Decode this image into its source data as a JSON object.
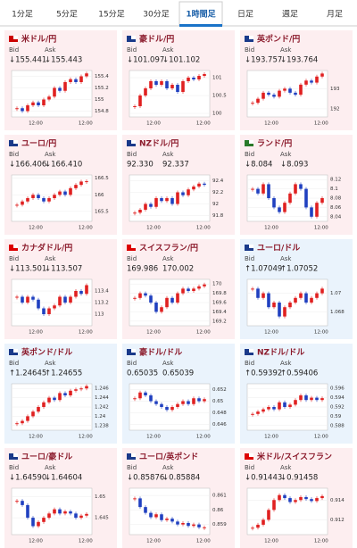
{
  "tabs": {
    "items": [
      "1分足",
      "5分足",
      "15分足",
      "30分足",
      "1時間足",
      "日足",
      "週足",
      "月足"
    ],
    "selected": 4
  },
  "cards": [
    {
      "name": "米ドル/円",
      "bid_label": "Bid",
      "ask_label": "Ask",
      "bid": "↓155.441",
      "ask": "↓155.443",
      "bg": "#fdeef0",
      "ylim": [
        154.7,
        155.5
      ],
      "yticks": [
        155.4,
        155.2,
        155,
        154.8
      ],
      "xticks": [
        "12:00",
        "12:00"
      ],
      "closes": [
        154.85,
        154.8,
        154.9,
        154.95,
        154.9,
        155.0,
        155.05,
        155.2,
        155.15,
        155.3,
        155.35,
        155.3,
        155.4,
        155.45
      ]
    },
    {
      "name": "豪ドル/円",
      "bid_label": "Bid",
      "ask_label": "Ask",
      "bid": "↓101.097",
      "ask": "↓101.102",
      "bg": "#fdeef0",
      "ylim": [
        99.9,
        101.2
      ],
      "yticks": [
        101,
        100.5,
        100
      ],
      "xticks": [
        "12:00",
        "12:00"
      ],
      "closes": [
        100.2,
        100.5,
        100.7,
        100.9,
        100.8,
        100.9,
        100.7,
        100.8,
        100.6,
        100.9,
        101.0,
        100.95,
        101.05,
        101.1
      ]
    },
    {
      "name": "英ポンド/円",
      "bid_label": "Bid",
      "ask_label": "Ask",
      "bid": "↓193.757",
      "ask": "↓193.764",
      "bg": "#fdeef0",
      "ylim": [
        191.6,
        193.9
      ],
      "yticks": [
        193,
        192
      ],
      "xticks": [
        "12:00",
        "12:00"
      ],
      "closes": [
        192.3,
        192.5,
        192.8,
        192.7,
        192.6,
        192.9,
        193.0,
        192.8,
        192.7,
        193.2,
        193.4,
        193.3,
        193.6,
        193.75
      ]
    },
    {
      "name": "ユーロ/円",
      "bid_label": "Bid",
      "ask_label": "Ask",
      "bid": "↓166.406",
      "ask": "↓166.410",
      "bg": "#fdeef0",
      "ylim": [
        165.2,
        166.6
      ],
      "yticks": [
        166.5,
        166,
        165.5
      ],
      "xticks": [
        "12:00",
        "12:00"
      ],
      "closes": [
        165.7,
        165.8,
        165.9,
        166.0,
        165.9,
        165.8,
        165.9,
        166.0,
        166.1,
        166.0,
        166.2,
        166.3,
        166.4,
        166.41
      ]
    },
    {
      "name": "NZドル/円",
      "bid_label": "Bid",
      "ask_label": "Ask",
      "bid": "92.330",
      "ask": "92.337",
      "bg": "#fdeef0",
      "ylim": [
        91.7,
        92.5
      ],
      "yticks": [
        92.4,
        92.2,
        92,
        91.8
      ],
      "xticks": [
        "12:00",
        "12:00"
      ],
      "closes": [
        91.85,
        91.9,
        92.0,
        91.95,
        92.1,
        92.05,
        92.1,
        92.0,
        92.2,
        92.15,
        92.25,
        92.3,
        92.35,
        92.33
      ]
    },
    {
      "name": "ランド/円",
      "bid_label": "Bid",
      "ask_label": "Ask",
      "bid": "↓8.084",
      "ask": "↓8.093",
      "bg": "#fdeef0",
      "ylim": [
        8.03,
        8.13
      ],
      "yticks": [
        8.12,
        8.1,
        8.08,
        8.06,
        8.04
      ],
      "xticks": [
        "12:00",
        "12:00"
      ],
      "closes": [
        8.1,
        8.09,
        8.11,
        8.08,
        8.06,
        8.05,
        8.07,
        8.09,
        8.11,
        8.1,
        8.06,
        8.04,
        8.07,
        8.08
      ]
    },
    {
      "name": "カナダドル/円",
      "bid_label": "Bid",
      "ask_label": "Ask",
      "bid": "↓113.501",
      "ask": "↓113.507",
      "bg": "#fdeef0",
      "ylim": [
        112.8,
        113.6
      ],
      "yticks": [
        113.4,
        113.2,
        113
      ],
      "xticks": [
        "12:00",
        "12:00"
      ],
      "closes": [
        113.3,
        113.2,
        113.3,
        113.25,
        113.1,
        113.0,
        113.1,
        113.15,
        113.3,
        113.2,
        113.3,
        113.4,
        113.35,
        113.5
      ]
    },
    {
      "name": "スイスフラン/円",
      "bid_label": "Bid",
      "ask_label": "Ask",
      "bid": "169.986",
      "ask": "170.002",
      "bg": "#fdeef0",
      "ylim": [
        169.1,
        170.1
      ],
      "yticks": [
        170,
        169.8,
        169.6,
        169.4,
        169.2
      ],
      "xticks": [
        "12:00",
        "12:00"
      ],
      "closes": [
        169.7,
        169.8,
        169.75,
        169.6,
        169.4,
        169.5,
        169.7,
        169.6,
        169.8,
        169.9,
        169.85,
        169.9,
        169.95,
        169.99
      ]
    },
    {
      "name": "ユーロ/ドル",
      "bid_label": "Bid",
      "ask_label": "Ask",
      "bid": "↑1.07049",
      "ask": "↑1.07052",
      "bg": "#eaf3fc",
      "ylim": [
        1.0665,
        1.0715
      ],
      "yticks": [
        1.07,
        1.068
      ],
      "xticks": [
        "12:00",
        "12:00"
      ],
      "closes": [
        1.0705,
        1.0695,
        1.07,
        1.0685,
        1.069,
        1.0675,
        1.0685,
        1.069,
        1.0695,
        1.07,
        1.069,
        1.0695,
        1.07,
        1.0705
      ]
    },
    {
      "name": "英ポンド/ドル",
      "bid_label": "Bid",
      "ask_label": "Ask",
      "bid": "↑1.24645",
      "ask": "↑1.24655",
      "bg": "#eaf3fc",
      "ylim": [
        1.237,
        1.247
      ],
      "yticks": [
        1.246,
        1.244,
        1.242,
        1.24,
        1.238
      ],
      "xticks": [
        "12:00",
        "12:00"
      ],
      "closes": [
        1.2385,
        1.239,
        1.24,
        1.241,
        1.242,
        1.243,
        1.244,
        1.2435,
        1.245,
        1.2445,
        1.2455,
        1.2458,
        1.246,
        1.2465
      ]
    },
    {
      "name": "豪ドル/ドル",
      "bid_label": "Bid",
      "ask_label": "Ask",
      "bid": "0.65035",
      "ask": "0.65039",
      "bg": "#eaf3fc",
      "ylim": [
        0.645,
        0.653
      ],
      "yticks": [
        0.652,
        0.65,
        0.648,
        0.646
      ],
      "xticks": [
        "12:00",
        "12:00"
      ],
      "closes": [
        0.6505,
        0.6515,
        0.651,
        0.65,
        0.6495,
        0.649,
        0.6485,
        0.649,
        0.6495,
        0.65,
        0.6495,
        0.6505,
        0.65,
        0.65035
      ]
    },
    {
      "name": "NZドル/ドル",
      "bid_label": "Bid",
      "ask_label": "Ask",
      "bid": "↑0.59392",
      "ask": "↑0.59406",
      "bg": "#eaf3fc",
      "ylim": [
        0.587,
        0.597
      ],
      "yticks": [
        0.596,
        0.594,
        0.592,
        0.59,
        0.588
      ],
      "xticks": [
        "12:00",
        "12:00"
      ],
      "closes": [
        0.5905,
        0.591,
        0.5915,
        0.592,
        0.5915,
        0.593,
        0.592,
        0.5925,
        0.5935,
        0.5945,
        0.5935,
        0.594,
        0.5935,
        0.5939
      ]
    },
    {
      "name": "ユーロ/豪ドル",
      "bid_label": "Bid",
      "ask_label": "Ask",
      "bid": "↓1.64590",
      "ask": "↓1.64604",
      "bg": "#fdeef0",
      "ylim": [
        1.641,
        1.652
      ],
      "yticks": [
        1.65,
        1.645
      ],
      "xticks": [
        "12:00",
        "12:00"
      ],
      "closes": [
        1.649,
        1.648,
        1.645,
        1.643,
        1.644,
        1.645,
        1.646,
        1.647,
        1.646,
        1.6465,
        1.646,
        1.645,
        1.6455,
        1.6459
      ]
    },
    {
      "name": "ユーロ/英ポンド",
      "bid_label": "Bid",
      "ask_label": "Ask",
      "bid": "↓0.85876",
      "ask": "↓0.85884",
      "bg": "#fdeef0",
      "ylim": [
        0.8583,
        0.8615
      ],
      "yticks": [
        0.861,
        0.86,
        0.859
      ],
      "xticks": [
        "12:00",
        "12:00"
      ],
      "closes": [
        0.8608,
        0.8602,
        0.8598,
        0.8595,
        0.8597,
        0.8593,
        0.8594,
        0.8592,
        0.859,
        0.8591,
        0.8589,
        0.859,
        0.8588,
        0.8588
      ]
    },
    {
      "name": "米ドル/スイスフラン",
      "bid_label": "Bid",
      "ask_label": "Ask",
      "bid": "↓0.91443",
      "ask": "↓0.91458",
      "bg": "#fdeef0",
      "ylim": [
        0.9105,
        0.9152
      ],
      "yticks": [
        0.914,
        0.912
      ],
      "xticks": [
        "12:00",
        "12:00"
      ],
      "closes": [
        0.9112,
        0.9115,
        0.912,
        0.913,
        0.914,
        0.9145,
        0.9142,
        0.9138,
        0.914,
        0.9143,
        0.9141,
        0.9139,
        0.9142,
        0.9144
      ]
    }
  ]
}
